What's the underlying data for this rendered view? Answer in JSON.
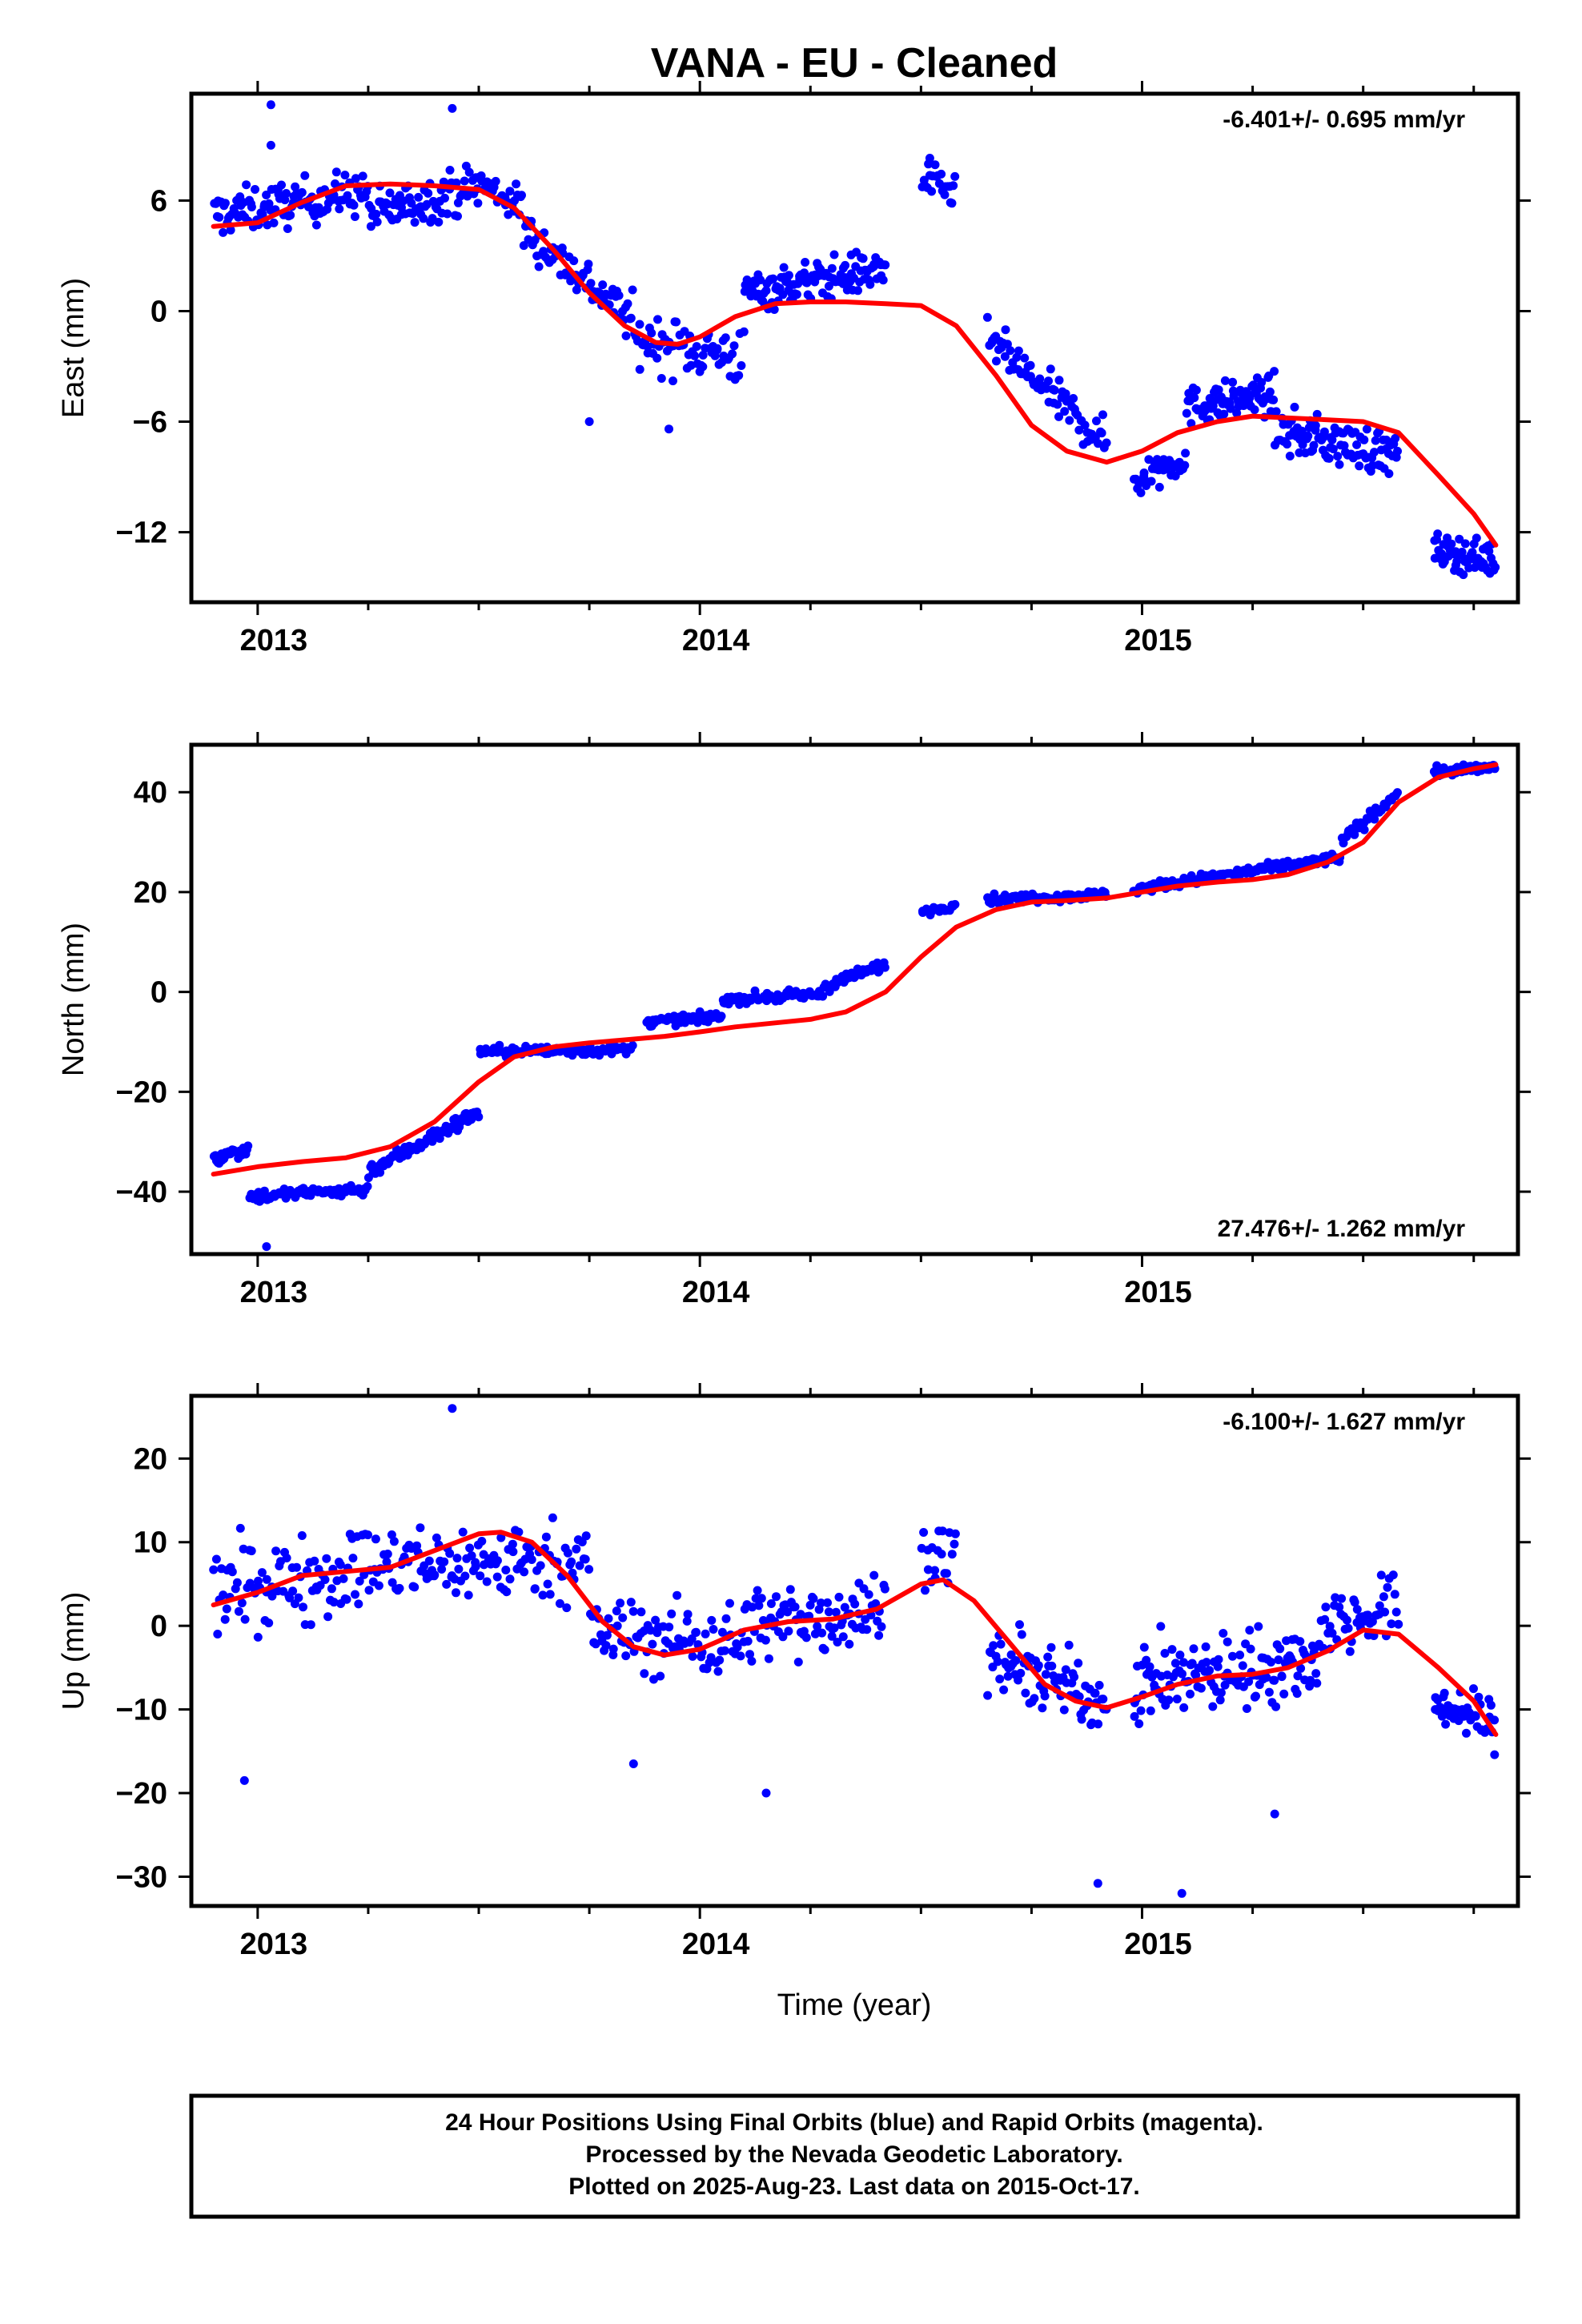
{
  "chart_data": {
    "title": "VANA  - EU - Cleaned",
    "type": "scatter",
    "x_axis": {
      "label": "Time (year)",
      "range": [
        2012.85,
        2015.85
      ],
      "major_ticks": [
        2013,
        2014,
        2015
      ],
      "minor_tick_step": 0.25
    },
    "panels": [
      {
        "id": "east",
        "ylabel": "East (mm)",
        "ylim": [
          -15.8,
          11.8
        ],
        "yticks": [
          6,
          0,
          -6,
          -12
        ],
        "ytick_labels": [
          "6",
          "0",
          "−6",
          "−12"
        ],
        "rate_label": "-6.401+/- 0.695 mm/yr",
        "rate_position": "top-right",
        "fit_curve": [
          [
            2012.9,
            4.6
          ],
          [
            2013.0,
            4.8
          ],
          [
            2013.1,
            5.9
          ],
          [
            2013.2,
            6.8
          ],
          [
            2013.3,
            6.9
          ],
          [
            2013.4,
            6.8
          ],
          [
            2013.5,
            6.6
          ],
          [
            2013.58,
            5.6
          ],
          [
            2013.67,
            3.3
          ],
          [
            2013.75,
            1.0
          ],
          [
            2013.83,
            -0.8
          ],
          [
            2013.9,
            -1.7
          ],
          [
            2013.95,
            -1.8
          ],
          [
            2014.0,
            -1.4
          ],
          [
            2014.08,
            -0.3
          ],
          [
            2014.17,
            0.4
          ],
          [
            2014.25,
            0.5
          ],
          [
            2014.33,
            0.5
          ],
          [
            2014.42,
            0.4
          ],
          [
            2014.5,
            0.3
          ],
          [
            2014.58,
            -0.8
          ],
          [
            2014.67,
            -3.5
          ],
          [
            2014.75,
            -6.2
          ],
          [
            2014.83,
            -7.6
          ],
          [
            2014.92,
            -8.2
          ],
          [
            2015.0,
            -7.6
          ],
          [
            2015.08,
            -6.6
          ],
          [
            2015.17,
            -6.0
          ],
          [
            2015.25,
            -5.7
          ],
          [
            2015.33,
            -5.8
          ],
          [
            2015.42,
            -5.9
          ],
          [
            2015.5,
            -6.0
          ],
          [
            2015.58,
            -6.6
          ],
          [
            2015.67,
            -8.9
          ],
          [
            2015.75,
            -11.0
          ],
          [
            2015.8,
            -12.7
          ]
        ],
        "scatter_segments": [
          {
            "x_start": 2012.9,
            "x_end": 2013.25,
            "base": [
              5.2,
              6.5
            ],
            "spread": 1.2,
            "n": 110
          },
          {
            "x_start": 2013.25,
            "x_end": 2013.5,
            "base": [
              5.2,
              6.8
            ],
            "spread": 1.2,
            "n": 80
          },
          {
            "x_start": 2013.5,
            "x_end": 2013.6,
            "base": [
              7.0,
              5.6
            ],
            "spread": 1.0,
            "n": 30
          },
          {
            "x_start": 2013.6,
            "x_end": 2013.85,
            "base": [
              4.5,
              -0.5
            ],
            "spread": 1.2,
            "n": 70
          },
          {
            "x_start": 2013.85,
            "x_end": 2014.1,
            "base": [
              -1.5,
              -2.5
            ],
            "spread": 1.5,
            "n": 70
          },
          {
            "x_start": 2014.1,
            "x_end": 2014.42,
            "base": [
              1.0,
              2.3
            ],
            "spread": 1.1,
            "n": 120
          },
          {
            "x_start": 2014.5,
            "x_end": 2014.58,
            "base": [
              7.2,
              6.4
            ],
            "spread": 0.9,
            "n": 22
          },
          {
            "x_start": 2014.65,
            "x_end": 2014.92,
            "base": [
              -1.5,
              -7.2
            ],
            "spread": 1.1,
            "n": 80
          },
          {
            "x_start": 2014.98,
            "x_end": 2015.1,
            "base": [
              -9.2,
              -7.8
            ],
            "spread": 1.1,
            "n": 35
          },
          {
            "x_start": 2015.1,
            "x_end": 2015.3,
            "base": [
              -5.2,
              -4.5
            ],
            "spread": 1.0,
            "n": 80
          },
          {
            "x_start": 2015.3,
            "x_end": 2015.58,
            "base": [
              -6.5,
              -7.8
            ],
            "spread": 1.2,
            "n": 100
          },
          {
            "x_start": 2015.66,
            "x_end": 2015.8,
            "base": [
              -13.0,
              -13.5
            ],
            "spread": 0.9,
            "n": 60
          }
        ],
        "outliers": [
          [
            2013.03,
            11.2
          ],
          [
            2013.44,
            11.0
          ],
          [
            2013.03,
            9.0
          ],
          [
            2013.75,
            -6.0
          ],
          [
            2013.93,
            -6.4
          ],
          [
            2014.52,
            8.3
          ]
        ]
      },
      {
        "id": "north",
        "ylabel": "North (mm)",
        "ylim": [
          -52.5,
          49.5
        ],
        "yticks": [
          40,
          20,
          0,
          -20,
          -40
        ],
        "ytick_labels": [
          "40",
          "20",
          "0",
          "−20",
          "−40"
        ],
        "rate_label": "27.476+/- 1.262 mm/yr",
        "rate_position": "bottom-right",
        "fit_curve": [
          [
            2012.9,
            -36.5
          ],
          [
            2013.0,
            -35.0
          ],
          [
            2013.1,
            -34.0
          ],
          [
            2013.2,
            -33.2
          ],
          [
            2013.3,
            -31.0
          ],
          [
            2013.4,
            -26.0
          ],
          [
            2013.5,
            -18.0
          ],
          [
            2013.58,
            -13.0
          ],
          [
            2013.67,
            -11.0
          ],
          [
            2013.75,
            -10.2
          ],
          [
            2013.83,
            -9.6
          ],
          [
            2013.92,
            -8.9
          ],
          [
            2014.0,
            -8.0
          ],
          [
            2014.08,
            -7.0
          ],
          [
            2014.17,
            -6.2
          ],
          [
            2014.25,
            -5.5
          ],
          [
            2014.33,
            -4.0
          ],
          [
            2014.42,
            0.0
          ],
          [
            2014.5,
            7.0
          ],
          [
            2014.58,
            13.0
          ],
          [
            2014.67,
            16.5
          ],
          [
            2014.75,
            18.0
          ],
          [
            2014.83,
            18.3
          ],
          [
            2014.92,
            18.8
          ],
          [
            2015.0,
            20.0
          ],
          [
            2015.08,
            21.2
          ],
          [
            2015.17,
            22.0
          ],
          [
            2015.25,
            22.5
          ],
          [
            2015.33,
            23.5
          ],
          [
            2015.42,
            26.0
          ],
          [
            2015.5,
            30.0
          ],
          [
            2015.58,
            38.0
          ],
          [
            2015.67,
            43.0
          ],
          [
            2015.75,
            44.7
          ],
          [
            2015.8,
            45.5
          ]
        ],
        "scatter_segments": [
          {
            "x_start": 2012.9,
            "x_end": 2012.98,
            "base": [
              -33.5,
              -31.0
            ],
            "spread": 1.6,
            "n": 25
          },
          {
            "x_start": 2012.98,
            "x_end": 2013.25,
            "base": [
              -41.0,
              -39.5
            ],
            "spread": 1.3,
            "n": 70
          },
          {
            "x_start": 2013.25,
            "x_end": 2013.5,
            "base": [
              -36.0,
              -24.0
            ],
            "spread": 1.4,
            "n": 90
          },
          {
            "x_start": 2013.5,
            "x_end": 2013.85,
            "base": [
              -12.0,
              -11.5
            ],
            "spread": 1.1,
            "n": 90
          },
          {
            "x_start": 2013.88,
            "x_end": 2014.05,
            "base": [
              -6.0,
              -5.0
            ],
            "spread": 0.9,
            "n": 50
          },
          {
            "x_start": 2014.05,
            "x_end": 2014.28,
            "base": [
              -1.5,
              -0.5
            ],
            "spread": 1.0,
            "n": 70
          },
          {
            "x_start": 2014.28,
            "x_end": 2014.42,
            "base": [
              1.0,
              5.5
            ],
            "spread": 1.1,
            "n": 45
          },
          {
            "x_start": 2014.5,
            "x_end": 2014.58,
            "base": [
              16.0,
              17.5
            ],
            "spread": 0.8,
            "n": 20
          },
          {
            "x_start": 2014.65,
            "x_end": 2014.92,
            "base": [
              18.5,
              19.5
            ],
            "spread": 0.9,
            "n": 80
          },
          {
            "x_start": 2014.98,
            "x_end": 2015.45,
            "base": [
              20.5,
              27.0
            ],
            "spread": 1.0,
            "n": 140
          },
          {
            "x_start": 2015.45,
            "x_end": 2015.58,
            "base": [
              30.0,
              40.0
            ],
            "spread": 1.2,
            "n": 40
          },
          {
            "x_start": 2015.66,
            "x_end": 2015.8,
            "base": [
              44.0,
              45.0
            ],
            "spread": 0.9,
            "n": 55
          }
        ],
        "outliers": [
          [
            2013.02,
            -51.0
          ]
        ]
      },
      {
        "id": "up",
        "ylabel": "Up (mm)",
        "ylim": [
          -33.5,
          27.5
        ],
        "yticks": [
          20,
          10,
          0,
          -10,
          -20,
          -30
        ],
        "ytick_labels": [
          "20",
          "10",
          "0",
          "−10",
          "−20",
          "−30"
        ],
        "rate_label": "-6.100+/- 1.627 mm/yr",
        "rate_position": "top-right",
        "fit_curve": [
          [
            2012.9,
            2.5
          ],
          [
            2013.0,
            4.0
          ],
          [
            2013.1,
            6.0
          ],
          [
            2013.2,
            6.5
          ],
          [
            2013.3,
            7.0
          ],
          [
            2013.4,
            9.0
          ],
          [
            2013.5,
            11.0
          ],
          [
            2013.55,
            11.2
          ],
          [
            2013.62,
            10.0
          ],
          [
            2013.7,
            6.0
          ],
          [
            2013.78,
            0.5
          ],
          [
            2013.85,
            -2.5
          ],
          [
            2013.92,
            -3.5
          ],
          [
            2014.0,
            -2.8
          ],
          [
            2014.1,
            -0.5
          ],
          [
            2014.2,
            0.5
          ],
          [
            2014.3,
            0.8
          ],
          [
            2014.4,
            2.0
          ],
          [
            2014.5,
            5.0
          ],
          [
            2014.55,
            5.5
          ],
          [
            2014.62,
            3.0
          ],
          [
            2014.7,
            -2.0
          ],
          [
            2014.78,
            -7.0
          ],
          [
            2014.85,
            -9.0
          ],
          [
            2014.92,
            -9.8
          ],
          [
            2015.0,
            -8.5
          ],
          [
            2015.08,
            -7.0
          ],
          [
            2015.17,
            -6.0
          ],
          [
            2015.25,
            -5.8
          ],
          [
            2015.33,
            -5.0
          ],
          [
            2015.42,
            -3.0
          ],
          [
            2015.5,
            -0.5
          ],
          [
            2015.58,
            -1.0
          ],
          [
            2015.67,
            -5.0
          ],
          [
            2015.75,
            -9.0
          ],
          [
            2015.8,
            -13.0
          ]
        ],
        "scatter_segments": [
          {
            "x_start": 2012.9,
            "x_end": 2013.25,
            "base": [
              4.0,
              7.0
            ],
            "spread": 5.0,
            "n": 90
          },
          {
            "x_start": 2013.25,
            "x_end": 2013.75,
            "base": [
              7.0,
              8.0
            ],
            "spread": 4.5,
            "n": 130
          },
          {
            "x_start": 2013.75,
            "x_end": 2014.1,
            "base": [
              -1.0,
              -2.0
            ],
            "spread": 4.5,
            "n": 90
          },
          {
            "x_start": 2014.1,
            "x_end": 2014.42,
            "base": [
              0.0,
              2.0
            ],
            "spread": 4.5,
            "n": 90
          },
          {
            "x_start": 2014.5,
            "x_end": 2014.58,
            "base": [
              9.0,
              8.0
            ],
            "spread": 3.5,
            "n": 20
          },
          {
            "x_start": 2014.65,
            "x_end": 2014.92,
            "base": [
              -4.0,
              -9.0
            ],
            "spread": 4.0,
            "n": 80
          },
          {
            "x_start": 2014.98,
            "x_end": 2015.4,
            "base": [
              -7.0,
              -4.0
            ],
            "spread": 4.5,
            "n": 140
          },
          {
            "x_start": 2015.4,
            "x_end": 2015.58,
            "base": [
              0.0,
              2.0
            ],
            "spread": 4.0,
            "n": 50
          },
          {
            "x_start": 2015.66,
            "x_end": 2015.8,
            "base": [
              -9.0,
              -12.0
            ],
            "spread": 3.0,
            "n": 45
          }
        ],
        "outliers": [
          [
            2013.44,
            26.0
          ],
          [
            2012.97,
            -18.5
          ],
          [
            2014.15,
            -20.0
          ],
          [
            2014.9,
            -30.8
          ],
          [
            2015.09,
            -32.0
          ],
          [
            2015.3,
            -22.5
          ],
          [
            2013.85,
            -16.5
          ]
        ]
      }
    ],
    "colors": {
      "points": "#0000ff",
      "fit": "#ff0000",
      "axes": "#000000"
    },
    "footer": {
      "lines": [
        "24 Hour Positions Using Final Orbits (blue) and Rapid Orbits (magenta).",
        "Processed by the Nevada Geodetic Laboratory.",
        "Plotted on 2025-Aug-23. Last data on 2015-Oct-17."
      ]
    }
  }
}
